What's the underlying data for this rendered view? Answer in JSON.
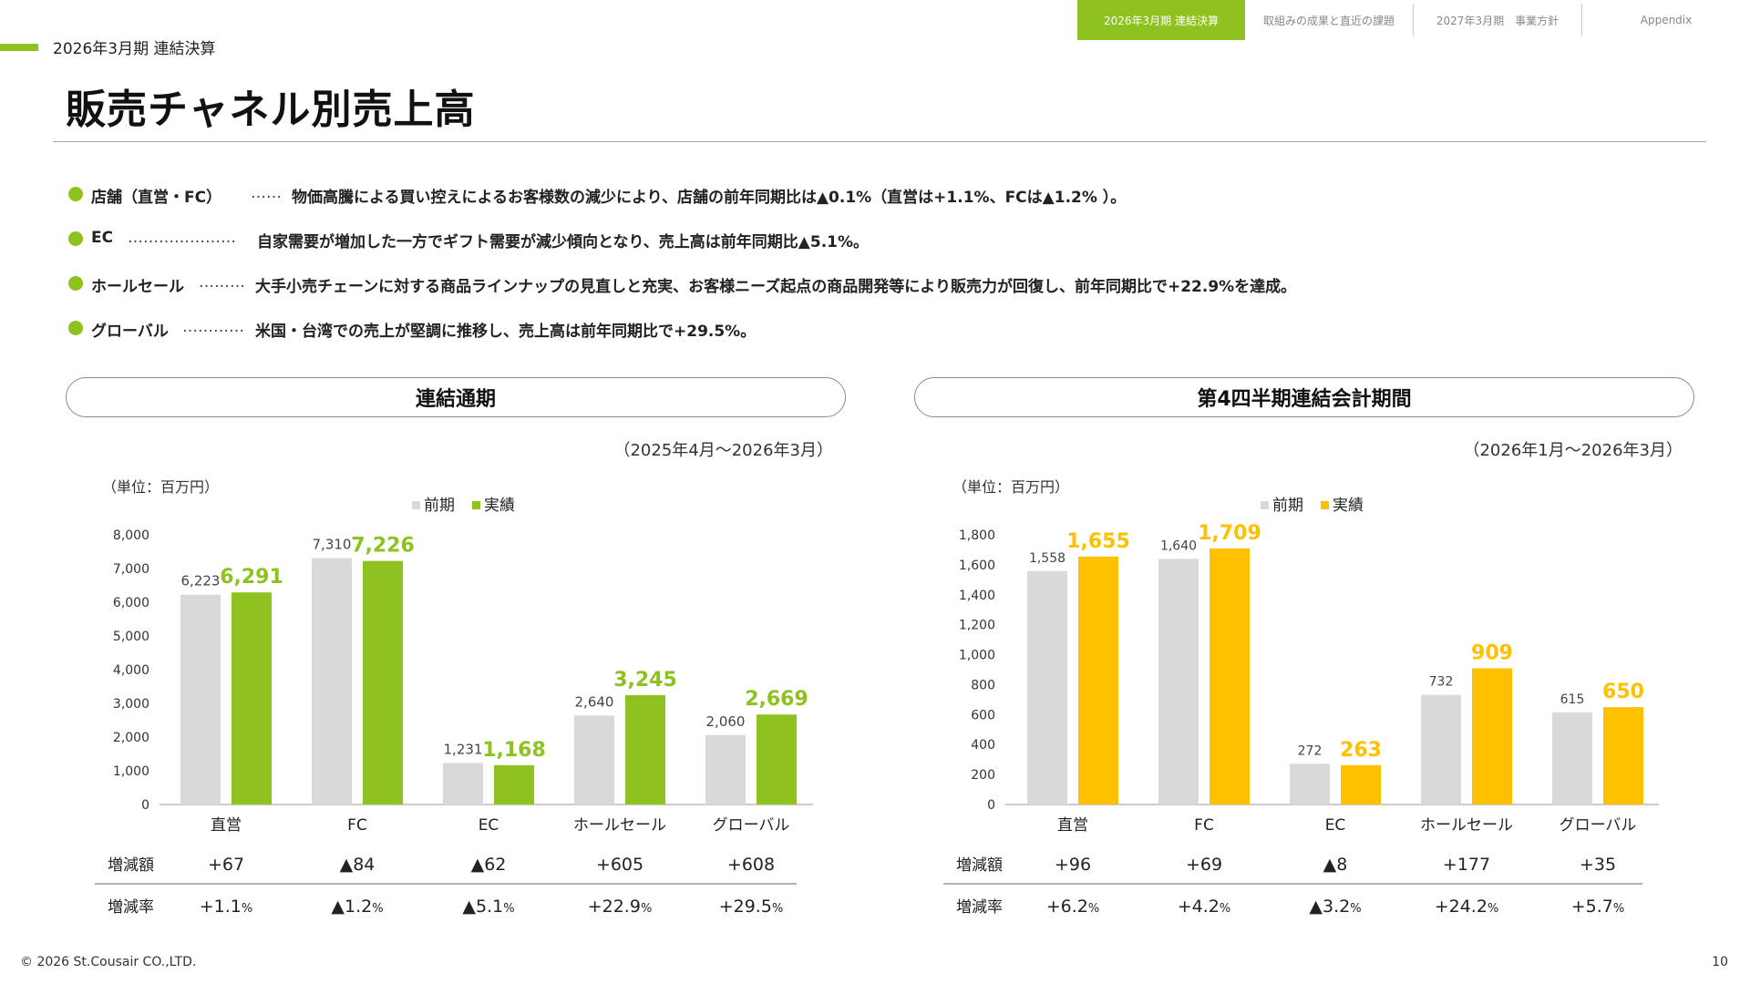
{
  "nav": {
    "tabs": [
      {
        "label": "2026年3月期 連結決算",
        "active": true
      },
      {
        "label": "取組みの成果と直近の課題",
        "active": false
      },
      {
        "label": "2027年3月期　事業方針",
        "active": false
      },
      {
        "label": "Appendix",
        "active": false
      }
    ]
  },
  "header": {
    "section": "2026年3月期 連結決算",
    "title": "販売チャネル別売上高"
  },
  "bullets": [
    {
      "label": "店舗（直営・FC）",
      "dots": "……",
      "text": "物価高騰による買い控えによるお客様数の減少により、店舗の前年同期比は▲0.1%（直営は+1.1%、FCは▲1.2% ）。"
    },
    {
      "label": "EC",
      "dots": "…………………",
      "text": "自家需要が増加した一方でギフト需要が減少傾向となり、売上高は前年同期比▲5.1%。"
    },
    {
      "label": "ホールセール",
      "dots": "………",
      "text": "大手小売チェーンに対する商品ラインナップの見直しと充実、お客様ニーズ起点の商品開発等により販売力が回復し、前年同期比で+22.9%を達成。"
    },
    {
      "label": "グローバル",
      "dots": "…………",
      "text": "米国・台湾での売上が堅調に推移し、売上高は前年同期比で+29.5%。"
    }
  ],
  "panels": {
    "left": {
      "title": "連結通期",
      "period": "（2025年4月～2026年3月）"
    },
    "right": {
      "title": "第4四半期連結会計期間",
      "period": "（2026年1月～2026年3月）"
    }
  },
  "colors": {
    "accent_green": "#8dc21f",
    "accent_yellow": "#ffc000",
    "prior_gray": "#d9d9d9"
  },
  "chart_data": [
    {
      "type": "bar",
      "unit_label": "（単位：百万円）",
      "categories": [
        "直営",
        "FC",
        "EC",
        "ホールセール",
        "グローバル"
      ],
      "series": [
        {
          "name": "前期",
          "color": "#d9d9d9",
          "values": [
            6223,
            7310,
            1231,
            2640,
            2060
          ]
        },
        {
          "name": "実績",
          "color": "#8dc21f",
          "values": [
            6291,
            7226,
            1168,
            3245,
            2669
          ]
        }
      ],
      "ylim": [
        0,
        8000
      ],
      "yticks": [
        0,
        1000,
        2000,
        3000,
        4000,
        5000,
        6000,
        7000,
        8000
      ],
      "legend_position": "top",
      "grid": false,
      "table": {
        "rows": [
          {
            "label": "増減額",
            "values": [
              "+67",
              "▲84",
              "▲62",
              "+605",
              "+608"
            ]
          },
          {
            "label": "増減率",
            "values": [
              "+1.1",
              "▲1.2",
              "▲5.1",
              "+22.9",
              "+29.5"
            ],
            "suffix": "%"
          }
        ]
      }
    },
    {
      "type": "bar",
      "unit_label": "（単位：百万円）",
      "categories": [
        "直営",
        "FC",
        "EC",
        "ホールセール",
        "グローバル"
      ],
      "series": [
        {
          "name": "前期",
          "color": "#d9d9d9",
          "values": [
            1558,
            1640,
            272,
            732,
            615
          ]
        },
        {
          "name": "実績",
          "color": "#ffc000",
          "values": [
            1655,
            1709,
            263,
            909,
            650
          ]
        }
      ],
      "ylim": [
        0,
        1800
      ],
      "yticks": [
        0,
        200,
        400,
        600,
        800,
        1000,
        1200,
        1400,
        1600,
        1800
      ],
      "legend_position": "top",
      "grid": false,
      "table": {
        "rows": [
          {
            "label": "増減額",
            "values": [
              "+96",
              "+69",
              "▲8",
              "+177",
              "+35"
            ]
          },
          {
            "label": "増減率",
            "values": [
              "+6.2",
              "+4.2",
              "▲3.2",
              "+24.2",
              "+5.7"
            ],
            "suffix": "%"
          }
        ]
      }
    }
  ],
  "footer": {
    "copyright": "© 2026 St.Cousair CO.,LTD.",
    "page_number": "10"
  }
}
